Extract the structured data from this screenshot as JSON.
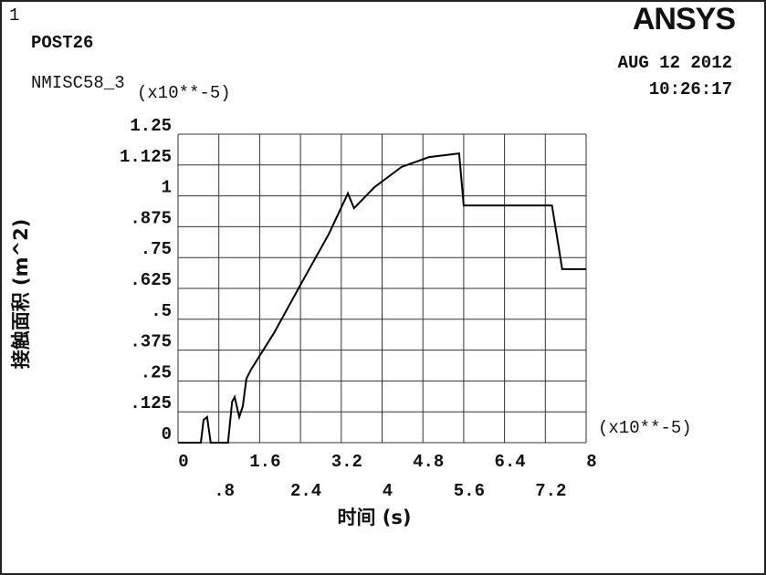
{
  "chart_data": {
    "type": "line",
    "plot_number": "1",
    "program": "POST26",
    "logo": "ANSYS",
    "date": "AUG 12 2012",
    "time": "10:26:17",
    "y_multiplier": "(x10**-5)",
    "x_multiplier": "(x10**-5)",
    "ylabel": "接触面积 (m^2)",
    "xlabel": "时间 (s)",
    "x": [
      0,
      0.447,
      0.5,
      0.57,
      0.64,
      0.98,
      1.06,
      1.11,
      1.2,
      1.27,
      1.34,
      1.43,
      1.88,
      2.42,
      2.95,
      3.33,
      3.45,
      3.85,
      4.38,
      4.92,
      5.51,
      5.6,
      7.33,
      7.46,
      7.53,
      8
    ],
    "series": [
      {
        "name": "NMISC58_3",
        "color": "#000000",
        "values": [
          0,
          0,
          0.092,
          0.104,
          0,
          0,
          0.166,
          0.185,
          0.104,
          0.148,
          0.259,
          0.296,
          0.444,
          0.647,
          0.843,
          1.01,
          0.95,
          1.035,
          1.117,
          1.157,
          1.172,
          0.961,
          0.961,
          0.795,
          0.703,
          0.703
        ]
      }
    ],
    "xlim": [
      0,
      8
    ],
    "xticks": [
      0,
      {
        "value": 0.8,
        "label": ".8"
      },
      1.6,
      2.4,
      3.2,
      4,
      4.8,
      5.6,
      6.4,
      7.2,
      8
    ],
    "ylim": [
      0,
      1.25
    ],
    "yticks": [
      0,
      {
        "value": 0.125,
        "label": ".125"
      },
      {
        "value": 0.25,
        "label": ".25"
      },
      {
        "value": 0.375,
        "label": ".375"
      },
      {
        "value": 0.5,
        "label": ".5"
      },
      {
        "value": 0.625,
        "label": ".625"
      },
      {
        "value": 0.75,
        "label": ".75"
      },
      {
        "value": 0.875,
        "label": ".875"
      },
      1,
      1.125,
      1.25
    ],
    "grid": true
  }
}
